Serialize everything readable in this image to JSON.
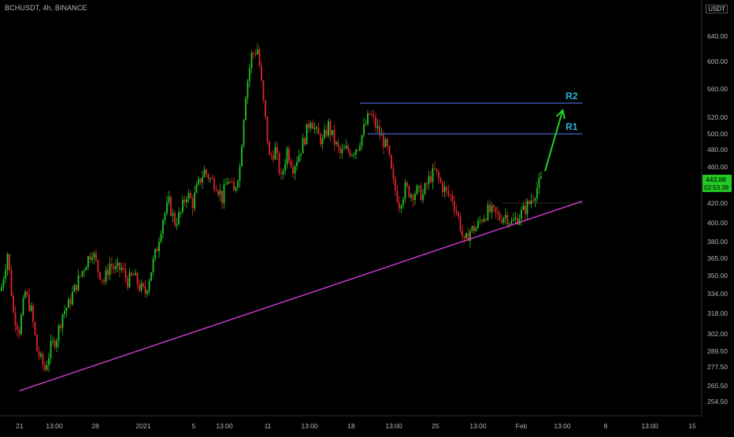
{
  "header": {
    "symbol": "BCHUSDT, 4h, BINANCE",
    "currency": "USDT"
  },
  "colors": {
    "up": "#26c426",
    "down": "#e0262c",
    "support": "#e040e0",
    "resistance": "#4a64d0",
    "resistance_label": "#29b6d6",
    "arrow": "#22d422",
    "price_tag": "#22c922",
    "axis_text": "#b2b5be"
  },
  "chart_data": {
    "type": "candlestick",
    "title": "BCHUSDT, 4h, BINANCE",
    "interval": "4h",
    "y_axis_ticks": [
      "254.50",
      "265.50",
      "277.50",
      "289.50",
      "302.00",
      "318.00",
      "334.00",
      "350.00",
      "365.00",
      "380.00",
      "400.00",
      "420.00",
      "440.00",
      "460.00",
      "480.00",
      "500.00",
      "520.00",
      "560.00",
      "600.00",
      "640.00"
    ],
    "x_axis_ticks": [
      "21",
      "13:00",
      "28",
      "2021",
      "5",
      "13:00",
      "11",
      "13:00",
      "18",
      "13:00",
      "25",
      "13:00",
      "Feb",
      "13:00",
      "8",
      "13:00",
      "15"
    ],
    "last_price": "443.88",
    "countdown": "02:53:38",
    "grid": false,
    "ohlc_keyframes": [
      {
        "i": 0,
        "price": 340
      },
      {
        "i": 3,
        "price": 370
      },
      {
        "i": 6,
        "price": 318
      },
      {
        "i": 9,
        "price": 305
      },
      {
        "i": 12,
        "price": 335
      },
      {
        "i": 15,
        "price": 320
      },
      {
        "i": 18,
        "price": 290
      },
      {
        "i": 22,
        "price": 276
      },
      {
        "i": 25,
        "price": 292
      },
      {
        "i": 28,
        "price": 300
      },
      {
        "i": 31,
        "price": 318
      },
      {
        "i": 34,
        "price": 325
      },
      {
        "i": 37,
        "price": 338
      },
      {
        "i": 40,
        "price": 350
      },
      {
        "i": 43,
        "price": 362
      },
      {
        "i": 46,
        "price": 372
      },
      {
        "i": 49,
        "price": 355
      },
      {
        "i": 52,
        "price": 345
      },
      {
        "i": 55,
        "price": 360
      },
      {
        "i": 58,
        "price": 355
      },
      {
        "i": 61,
        "price": 356
      },
      {
        "i": 64,
        "price": 345
      },
      {
        "i": 67,
        "price": 350
      },
      {
        "i": 70,
        "price": 340
      },
      {
        "i": 73,
        "price": 335
      },
      {
        "i": 76,
        "price": 355
      },
      {
        "i": 79,
        "price": 375
      },
      {
        "i": 82,
        "price": 405
      },
      {
        "i": 85,
        "price": 420
      },
      {
        "i": 88,
        "price": 400
      },
      {
        "i": 91,
        "price": 410
      },
      {
        "i": 94,
        "price": 430
      },
      {
        "i": 97,
        "price": 420
      },
      {
        "i": 100,
        "price": 440
      },
      {
        "i": 103,
        "price": 455
      },
      {
        "i": 106,
        "price": 445
      },
      {
        "i": 109,
        "price": 440
      },
      {
        "i": 112,
        "price": 425
      },
      {
        "i": 115,
        "price": 445
      },
      {
        "i": 118,
        "price": 430
      },
      {
        "i": 121,
        "price": 460
      },
      {
        "i": 124,
        "price": 555
      },
      {
        "i": 127,
        "price": 610
      },
      {
        "i": 130,
        "price": 620
      },
      {
        "i": 133,
        "price": 540
      },
      {
        "i": 136,
        "price": 470
      },
      {
        "i": 139,
        "price": 480
      },
      {
        "i": 142,
        "price": 445
      },
      {
        "i": 145,
        "price": 480
      },
      {
        "i": 148,
        "price": 460
      },
      {
        "i": 151,
        "price": 475
      },
      {
        "i": 154,
        "price": 495
      },
      {
        "i": 157,
        "price": 520
      },
      {
        "i": 160,
        "price": 500
      },
      {
        "i": 163,
        "price": 490
      },
      {
        "i": 166,
        "price": 510
      },
      {
        "i": 169,
        "price": 490
      },
      {
        "i": 172,
        "price": 475
      },
      {
        "i": 175,
        "price": 480
      },
      {
        "i": 178,
        "price": 478
      },
      {
        "i": 181,
        "price": 485
      },
      {
        "i": 184,
        "price": 505
      },
      {
        "i": 187,
        "price": 525
      },
      {
        "i": 190,
        "price": 510
      },
      {
        "i": 193,
        "price": 495
      },
      {
        "i": 196,
        "price": 480
      },
      {
        "i": 199,
        "price": 440
      },
      {
        "i": 202,
        "price": 420
      },
      {
        "i": 205,
        "price": 435
      },
      {
        "i": 208,
        "price": 430
      },
      {
        "i": 211,
        "price": 432
      },
      {
        "i": 214,
        "price": 428
      },
      {
        "i": 217,
        "price": 445
      },
      {
        "i": 220,
        "price": 455
      },
      {
        "i": 223,
        "price": 440
      },
      {
        "i": 226,
        "price": 430
      },
      {
        "i": 229,
        "price": 425
      },
      {
        "i": 232,
        "price": 405
      },
      {
        "i": 235,
        "price": 378
      },
      {
        "i": 238,
        "price": 392
      },
      {
        "i": 241,
        "price": 395
      },
      {
        "i": 244,
        "price": 405
      },
      {
        "i": 247,
        "price": 412
      },
      {
        "i": 250,
        "price": 410
      },
      {
        "i": 253,
        "price": 405
      },
      {
        "i": 256,
        "price": 408
      },
      {
        "i": 259,
        "price": 400
      },
      {
        "i": 262,
        "price": 405
      },
      {
        "i": 265,
        "price": 412
      },
      {
        "i": 268,
        "price": 420
      },
      {
        "i": 271,
        "price": 432
      },
      {
        "i": 274,
        "price": 443.88
      }
    ],
    "support_line": {
      "from": {
        "i": 9,
        "price": 262
      },
      "to": {
        "i": 295,
        "price": 422
      }
    },
    "resistance_lines": [
      {
        "label": "R2",
        "price": 540,
        "from_i": 182,
        "to_i": 295
      },
      {
        "label": "R1",
        "price": 500,
        "from_i": 186,
        "to_i": 295
      }
    ],
    "dotted_level": {
      "price": 420,
      "from_i": 255,
      "to_i": 295
    },
    "projection_arrow": {
      "from": {
        "i": 276,
        "price": 455
      },
      "to": {
        "i": 285,
        "price": 530
      }
    }
  }
}
